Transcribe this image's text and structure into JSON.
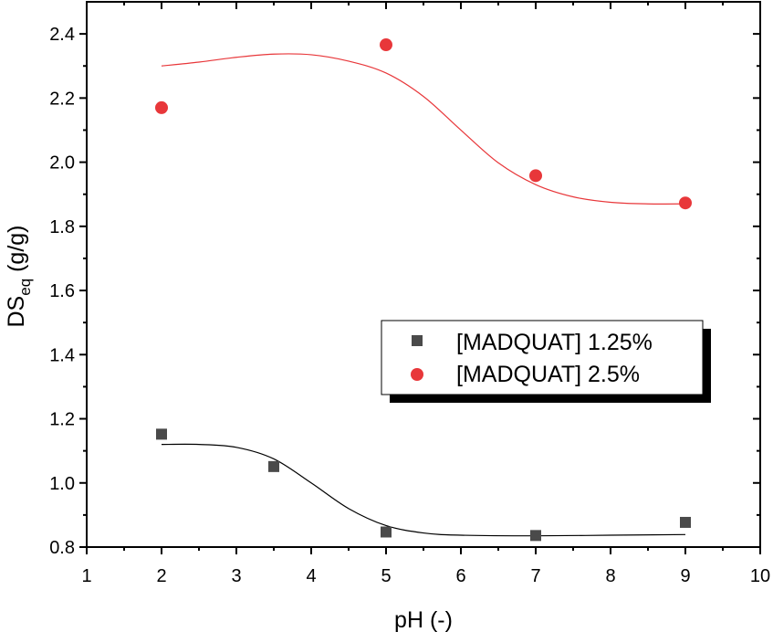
{
  "chart_data": {
    "type": "scatter",
    "xlabel": "pH (-)",
    "ylabel": {
      "main": "DS",
      "sub": "eq",
      "unit": " (g/g)"
    },
    "xlim": [
      1,
      10
    ],
    "ylim": [
      0.8,
      2.5
    ],
    "xticks": [
      "1",
      "2",
      "3",
      "4",
      "5",
      "6",
      "7",
      "8",
      "9",
      "10"
    ],
    "yticks": [
      "0.8",
      "1.0",
      "1.2",
      "1.4",
      "1.6",
      "1.8",
      "2.0",
      "2.2",
      "2.4"
    ],
    "grid": false,
    "legend_position": "center-right",
    "series": [
      {
        "name": "[MADQUAT] 1.25%",
        "marker": "square",
        "color": "#4a4a4a",
        "line_color": "#000000",
        "points": [
          {
            "x": 2,
            "y": 1.152
          },
          {
            "x": 3.5,
            "y": 1.051
          },
          {
            "x": 5,
            "y": 0.847
          },
          {
            "x": 7,
            "y": 0.836
          },
          {
            "x": 9,
            "y": 0.877
          }
        ],
        "fit": [
          {
            "x": 2,
            "y": 1.12
          },
          {
            "x": 2.5,
            "y": 1.12
          },
          {
            "x": 3.0,
            "y": 1.111
          },
          {
            "x": 3.5,
            "y": 1.075
          },
          {
            "x": 4.0,
            "y": 1.0
          },
          {
            "x": 4.5,
            "y": 0.92
          },
          {
            "x": 5.0,
            "y": 0.867
          },
          {
            "x": 5.5,
            "y": 0.844
          },
          {
            "x": 6.0,
            "y": 0.837
          },
          {
            "x": 7.0,
            "y": 0.835
          },
          {
            "x": 8.0,
            "y": 0.837
          },
          {
            "x": 9.0,
            "y": 0.839
          }
        ]
      },
      {
        "name": "[MADQUAT] 2.5%",
        "marker": "circle",
        "color": "#e8373a",
        "line_color": "#e8373a",
        "points": [
          {
            "x": 2,
            "y": 2.17
          },
          {
            "x": 5,
            "y": 2.366
          },
          {
            "x": 7,
            "y": 1.958
          },
          {
            "x": 9,
            "y": 1.873
          }
        ],
        "fit": [
          {
            "x": 2,
            "y": 2.3
          },
          {
            "x": 2.5,
            "y": 2.312
          },
          {
            "x": 3.0,
            "y": 2.327
          },
          {
            "x": 3.5,
            "y": 2.337
          },
          {
            "x": 4.0,
            "y": 2.335
          },
          {
            "x": 4.5,
            "y": 2.315
          },
          {
            "x": 5.0,
            "y": 2.278
          },
          {
            "x": 5.5,
            "y": 2.205
          },
          {
            "x": 6.0,
            "y": 2.1
          },
          {
            "x": 6.5,
            "y": 1.998
          },
          {
            "x": 7.0,
            "y": 1.93
          },
          {
            "x": 7.5,
            "y": 1.892
          },
          {
            "x": 8.0,
            "y": 1.875
          },
          {
            "x": 8.5,
            "y": 1.87
          },
          {
            "x": 9.0,
            "y": 1.87
          }
        ]
      }
    ]
  }
}
